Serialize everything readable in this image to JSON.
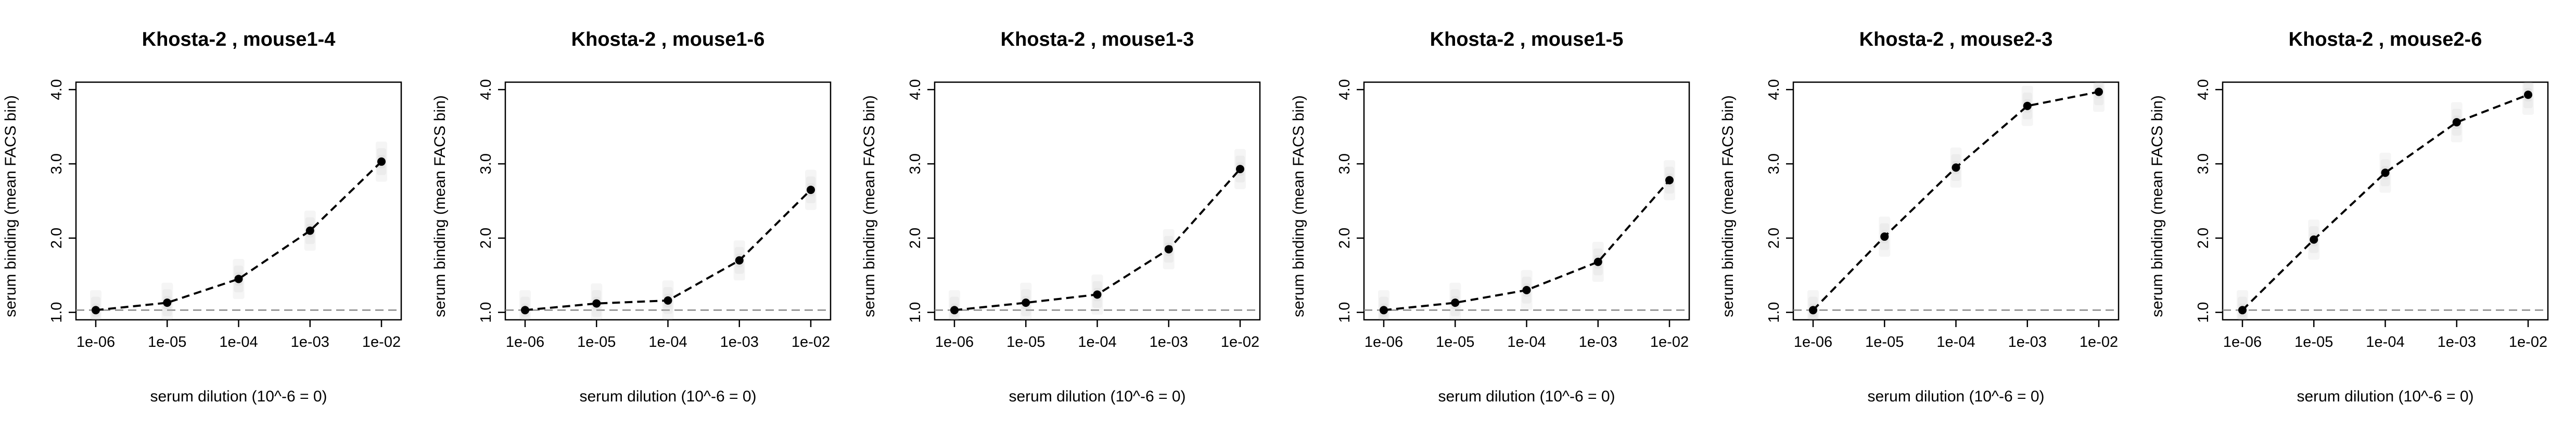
{
  "chart_data": [
    {
      "type": "line",
      "title": "Khosta-2 , mouse1-4",
      "xlabel": "serum dilution (10^-6 = 0)",
      "ylabel": "serum binding (mean FACS bin)",
      "x": [
        "1e-06",
        "1e-05",
        "1e-04",
        "1e-03",
        "1e-02"
      ],
      "ylim": [
        0.9,
        4.1
      ],
      "yticks": [
        "1.0",
        "2.0",
        "3.0",
        "4.0"
      ],
      "series": [
        {
          "values": [
            1.03,
            1.13,
            1.45,
            2.1,
            3.03
          ]
        }
      ],
      "baseline": 1.03,
      "grid": false
    },
    {
      "type": "line",
      "title": "Khosta-2 , mouse1-6",
      "xlabel": "serum dilution (10^-6 = 0)",
      "ylabel": "serum binding (mean FACS bin)",
      "x": [
        "1e-06",
        "1e-05",
        "1e-04",
        "1e-03",
        "1e-02"
      ],
      "ylim": [
        0.9,
        4.1
      ],
      "yticks": [
        "1.0",
        "2.0",
        "3.0",
        "4.0"
      ],
      "series": [
        {
          "values": [
            1.03,
            1.12,
            1.16,
            1.7,
            2.65
          ]
        }
      ],
      "baseline": 1.03,
      "grid": false
    },
    {
      "type": "line",
      "title": "Khosta-2 , mouse1-3",
      "xlabel": "serum dilution (10^-6 = 0)",
      "ylabel": "serum binding (mean FACS bin)",
      "x": [
        "1e-06",
        "1e-05",
        "1e-04",
        "1e-03",
        "1e-02"
      ],
      "ylim": [
        0.9,
        4.1
      ],
      "yticks": [
        "1.0",
        "2.0",
        "3.0",
        "4.0"
      ],
      "series": [
        {
          "values": [
            1.03,
            1.13,
            1.24,
            1.85,
            2.93
          ]
        }
      ],
      "baseline": 1.03,
      "grid": false
    },
    {
      "type": "line",
      "title": "Khosta-2 , mouse1-5",
      "xlabel": "serum dilution (10^-6 = 0)",
      "ylabel": "serum binding (mean FACS bin)",
      "x": [
        "1e-06",
        "1e-05",
        "1e-04",
        "1e-03",
        "1e-02"
      ],
      "ylim": [
        0.9,
        4.1
      ],
      "yticks": [
        "1.0",
        "2.0",
        "3.0",
        "4.0"
      ],
      "series": [
        {
          "values": [
            1.03,
            1.13,
            1.3,
            1.68,
            2.78
          ]
        }
      ],
      "baseline": 1.03,
      "grid": false
    },
    {
      "type": "line",
      "title": "Khosta-2 , mouse2-3",
      "xlabel": "serum dilution (10^-6 = 0)",
      "ylabel": "serum binding (mean FACS bin)",
      "x": [
        "1e-06",
        "1e-05",
        "1e-04",
        "1e-03",
        "1e-02"
      ],
      "ylim": [
        0.9,
        4.1
      ],
      "yticks": [
        "1.0",
        "2.0",
        "3.0",
        "4.0"
      ],
      "series": [
        {
          "values": [
            1.03,
            2.02,
            2.95,
            3.78,
            3.97
          ]
        }
      ],
      "baseline": 1.03,
      "grid": false
    },
    {
      "type": "line",
      "title": "Khosta-2 , mouse2-6",
      "xlabel": "serum dilution (10^-6 = 0)",
      "ylabel": "serum binding (mean FACS bin)",
      "x": [
        "1e-06",
        "1e-05",
        "1e-04",
        "1e-03",
        "1e-02"
      ],
      "ylim": [
        0.9,
        4.1
      ],
      "yticks": [
        "1.0",
        "2.0",
        "3.0",
        "4.0"
      ],
      "series": [
        {
          "values": [
            1.03,
            1.98,
            2.88,
            3.56,
            3.93
          ]
        }
      ],
      "baseline": 1.03,
      "grid": false
    }
  ]
}
